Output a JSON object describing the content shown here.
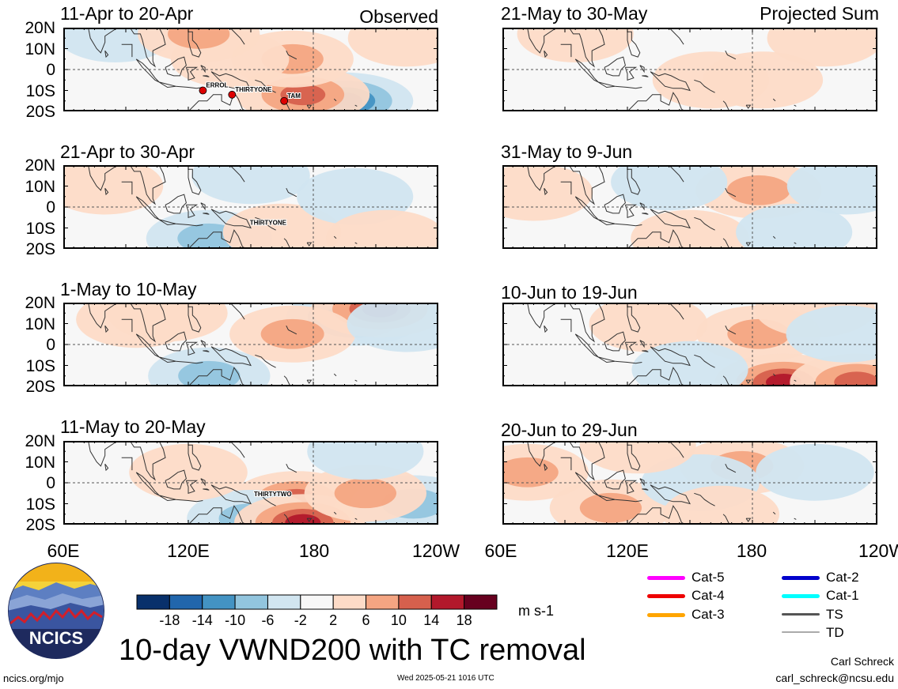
{
  "panels_left": [
    {
      "title": "11-Apr to 20-Apr",
      "note": "Observed",
      "storms": [
        {
          "name": "ERROL"
        },
        {
          "name": "THIRTYONE"
        },
        {
          "name": "TAM"
        }
      ]
    },
    {
      "title": "21-Apr to 30-Apr",
      "note": "",
      "storms": [
        {
          "name": "THIRTYONE"
        }
      ]
    },
    {
      "title": "1-May to 10-May",
      "note": "",
      "storms": []
    },
    {
      "title": "11-May to 20-May",
      "note": "",
      "storms": [
        {
          "name": "THIRTYTWO"
        }
      ]
    }
  ],
  "panels_right": [
    {
      "title": "21-May to 30-May",
      "note": "Projected Sum"
    },
    {
      "title": "31-May to 9-Jun",
      "note": ""
    },
    {
      "title": "10-Jun to 19-Jun",
      "note": ""
    },
    {
      "title": "20-Jun to 29-Jun",
      "note": ""
    }
  ],
  "lat_labels": [
    "20N",
    "10N",
    "0",
    "10S",
    "20S"
  ],
  "lon_labels_left": [
    "60E",
    "120E",
    "180",
    "120W"
  ],
  "lon_labels_right": [
    "60E",
    "120E",
    "180",
    "120W"
  ],
  "colorbar": {
    "ticks": [
      "-18",
      "-14",
      "-10",
      "-6",
      "-2",
      "2",
      "6",
      "10",
      "14",
      "18"
    ],
    "colors": [
      "#08306b",
      "#2166ac",
      "#4393c3",
      "#92c5de",
      "#d1e5f0",
      "#f7f7f7",
      "#fddbc7",
      "#f4a582",
      "#d6604d",
      "#b2182b",
      "#67001f"
    ],
    "units": "m s-1"
  },
  "legend": [
    {
      "label": "Cat-5",
      "color": "#ff00ff"
    },
    {
      "label": "Cat-4",
      "color": "#ee0000"
    },
    {
      "label": "Cat-3",
      "color": "#ffa500"
    },
    {
      "label": "Cat-2",
      "color": "#0000cc"
    },
    {
      "label": "Cat-1",
      "color": "#00ffff"
    },
    {
      "label": "TS",
      "color": "#555555"
    },
    {
      "label": "TD",
      "color": "#aaaaaa"
    }
  ],
  "main_title": "10-day VWND200 with TC removal",
  "logo_text": "NCICS",
  "site_url": "ncics.org/mjo",
  "timestamp": "Wed 2025-05-21 1016 UTC",
  "author": "Carl Schreck",
  "email": "carl_schreck@ncsu.edu",
  "chart_data": {
    "type": "heatmap",
    "variable": "200-hPa meridional wind anomaly (10-day), TC removed",
    "units": "m s-1",
    "lat_range": [
      "20S",
      "20N"
    ],
    "lon_range": [
      "60E",
      "120W"
    ],
    "color_levels": [
      -18,
      -14,
      -10,
      -6,
      -2,
      2,
      6,
      10,
      14,
      18
    ],
    "panels": [
      {
        "period": "11-Apr to 20-Apr",
        "kind": "Observed",
        "features": [
          {
            "lon": 195,
            "lat": -15,
            "value": -14
          },
          {
            "lon": 175,
            "lat": -12,
            "value": 12
          },
          {
            "lon": 170,
            "lat": 5,
            "value": 6
          },
          {
            "lon": 140,
            "lat": 5,
            "value": 4
          },
          {
            "lon": 85,
            "lat": 17,
            "value": -4
          },
          {
            "lon": 125,
            "lat": 17,
            "value": 6
          },
          {
            "lon": 225,
            "lat": 15,
            "value": 4
          }
        ]
      },
      {
        "period": "21-Apr to 30-Apr",
        "kind": "Observed",
        "features": [
          {
            "lon": 80,
            "lat": 10,
            "value": 3
          },
          {
            "lon": 130,
            "lat": -15,
            "value": -8
          },
          {
            "lon": 150,
            "lat": 15,
            "value": -4
          },
          {
            "lon": 165,
            "lat": -12,
            "value": 4
          },
          {
            "lon": 200,
            "lat": 5,
            "value": -3
          },
          {
            "lon": 215,
            "lat": -15,
            "value": 5
          }
        ]
      },
      {
        "period": "1-May to 10-May",
        "kind": "Observed",
        "features": [
          {
            "lon": 200,
            "lat": 13,
            "value": -14
          },
          {
            "lon": 212,
            "lat": 17,
            "value": 14
          },
          {
            "lon": 170,
            "lat": 5,
            "value": 8
          },
          {
            "lon": 95,
            "lat": 12,
            "value": 5
          },
          {
            "lon": 130,
            "lat": -15,
            "value": -6
          },
          {
            "lon": 110,
            "lat": 15,
            "value": 5
          },
          {
            "lon": 225,
            "lat": 10,
            "value": -5
          }
        ]
      },
      {
        "period": "11-May to 20-May",
        "kind": "Observed",
        "features": [
          {
            "lon": 172,
            "lat": -8,
            "value": 10
          },
          {
            "lon": 150,
            "lat": -17,
            "value": -9
          },
          {
            "lon": 175,
            "lat": -19,
            "value": 14
          },
          {
            "lon": 120,
            "lat": 5,
            "value": 4
          },
          {
            "lon": 228,
            "lat": -10,
            "value": -8
          },
          {
            "lon": 205,
            "lat": -5,
            "value": 6
          },
          {
            "lon": 205,
            "lat": 15,
            "value": -3
          }
        ]
      },
      {
        "period": "21-May to 30-May",
        "kind": "Projected Sum",
        "features": [
          {
            "lon": 185,
            "lat": -5,
            "value": 5
          },
          {
            "lon": 160,
            "lat": -5,
            "value": 3
          },
          {
            "lon": 215,
            "lat": 15,
            "value": 3
          },
          {
            "lon": 95,
            "lat": 17,
            "value": 3
          }
        ]
      },
      {
        "period": "31-May to 9-Jun",
        "kind": "Projected Sum",
        "features": [
          {
            "lon": 183,
            "lat": 8,
            "value": 8
          },
          {
            "lon": 75,
            "lat": 7,
            "value": 4
          },
          {
            "lon": 150,
            "lat": -15,
            "value": 4
          },
          {
            "lon": 140,
            "lat": 12,
            "value": -3
          },
          {
            "lon": 225,
            "lat": 10,
            "value": -4
          },
          {
            "lon": 200,
            "lat": -12,
            "value": -3
          }
        ]
      },
      {
        "period": "10-Jun to 19-Jun",
        "kind": "Projected Sum",
        "features": [
          {
            "lon": 183,
            "lat": 5,
            "value": 7
          },
          {
            "lon": 195,
            "lat": -18,
            "value": 14
          },
          {
            "lon": 230,
            "lat": -18,
            "value": 12
          },
          {
            "lon": 210,
            "lat": 17,
            "value": 5
          },
          {
            "lon": 225,
            "lat": 5,
            "value": -5
          },
          {
            "lon": 130,
            "lat": 10,
            "value": 4
          },
          {
            "lon": 150,
            "lat": -12,
            "value": -3
          }
        ]
      },
      {
        "period": "20-Jun to 29-Jun",
        "kind": "Projected Sum",
        "features": [
          {
            "lon": 72,
            "lat": 5,
            "value": 6
          },
          {
            "lon": 112,
            "lat": -12,
            "value": 6
          },
          {
            "lon": 175,
            "lat": 8,
            "value": 7
          },
          {
            "lon": 155,
            "lat": 0,
            "value": -4
          },
          {
            "lon": 210,
            "lat": 5,
            "value": -4
          },
          {
            "lon": 165,
            "lat": -15,
            "value": 3
          },
          {
            "lon": 125,
            "lat": 18,
            "value": 3
          }
        ]
      }
    ]
  }
}
